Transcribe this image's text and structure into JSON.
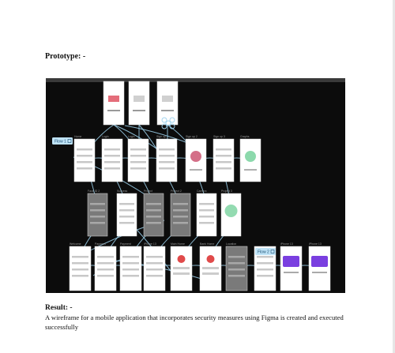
{
  "heading": "Prototype: -",
  "figma": {
    "colors": {
      "canvas": "#0c0c0c",
      "frame": "#ffffff",
      "frame_dark": "#7a7a7a",
      "connector": "#9fd3ee",
      "flow_tag": "#bfe3f7",
      "purple": "#7a3fe0"
    },
    "flow_tags": [
      "Flow 1",
      "Flow 2"
    ],
    "frame_titles": {
      "row2": [
        "Home",
        "Login",
        "Login",
        "Sign up",
        "Sign up 2",
        "Sign up 3",
        "Graphs"
      ],
      "row3": [
        "Face ID 2",
        "Success",
        "Project",
        "Project 2",
        "Camera",
        "Project 3"
      ],
      "row4": [
        "Welcome",
        "Payment",
        "Payment",
        "iPhone 13",
        "Main Home",
        "Bank Home",
        "Location",
        "",
        "iPhone 13",
        "iPhone 13"
      ]
    }
  },
  "result": {
    "title": "Result: -",
    "text": "A wireframe for a mobile application that incorporates security measures using Figma is  created and executed successfully"
  }
}
